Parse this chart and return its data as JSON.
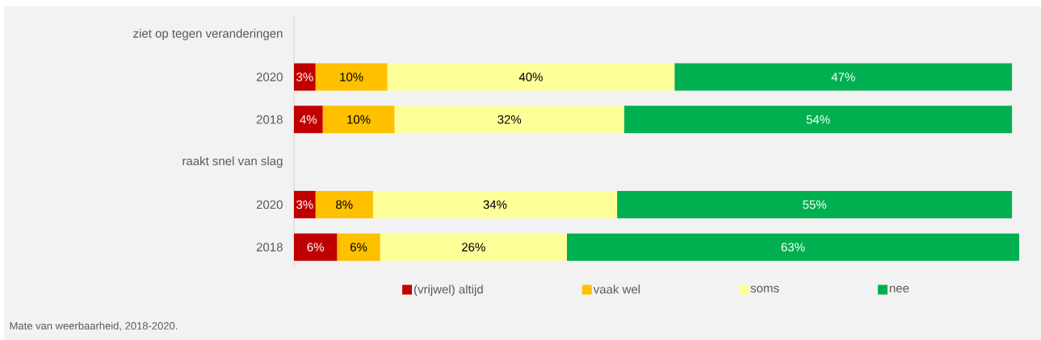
{
  "chart_data": {
    "type": "bar",
    "orientation": "horizontal",
    "stacked": true,
    "categories": [
      "ziet op tegen veranderingen",
      "2020",
      "2018",
      "raakt snel van slag",
      "2020",
      "2018"
    ],
    "xlim": [
      0,
      101
    ],
    "legend": "bottom",
    "tick_labels": "y",
    "series": [
      {
        "name": "(vrijwel) altijd",
        "color": "#c00000",
        "values": [
          null,
          3,
          4,
          null,
          3,
          6
        ],
        "value_labels": [
          null,
          "3%",
          "4%",
          null,
          "3%",
          "6%"
        ]
      },
      {
        "name": "vaak wel",
        "color": "#ffc000",
        "values": [
          null,
          10,
          10,
          null,
          8,
          6
        ],
        "value_labels": [
          null,
          "10%",
          "10%",
          null,
          "8%",
          "6%"
        ]
      },
      {
        "name": "soms",
        "color": "#ffff99",
        "values": [
          null,
          40,
          32,
          null,
          34,
          26
        ],
        "value_labels": [
          null,
          "40%",
          "32%",
          null,
          "34%",
          "26%"
        ]
      },
      {
        "name": "nee",
        "color": "#00b050",
        "values": [
          null,
          47,
          54,
          null,
          55,
          63
        ],
        "value_labels": [
          null,
          "47%",
          "54%",
          null,
          "55%",
          "63%"
        ]
      }
    ],
    "annotations": [
      "Mate van weerbaarheid, 2018-2020."
    ]
  }
}
